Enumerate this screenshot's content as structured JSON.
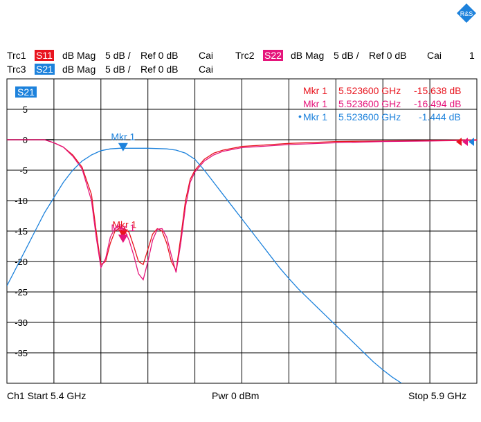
{
  "brand": {
    "logo_text": "R&S"
  },
  "header": {
    "row1": [
      {
        "trace": "Trc1",
        "param": "S11",
        "color": "#e8141e",
        "format": "dB Mag",
        "scale": "5 dB /",
        "ref": "Ref 0 dB",
        "cal": "Cai"
      },
      {
        "trace": "Trc2",
        "param": "S22",
        "color": "#e5157b",
        "format": "dB Mag",
        "scale": "5 dB /",
        "ref": "Ref 0 dB",
        "cal": "Cai",
        "channel": "1"
      }
    ],
    "row2": [
      {
        "trace": "Trc3",
        "param": "S21",
        "color": "#1d82dc",
        "format": "dB Mag",
        "scale": "5 dB /",
        "ref": "Ref 0 dB",
        "cal": "Cai"
      }
    ]
  },
  "diagram": {
    "active_trace_label": "S21"
  },
  "markers": [
    {
      "name": "Mkr 1",
      "freq": "5.523600 GHz",
      "value": "-15.638 dB",
      "color": "#e8141e",
      "active": false
    },
    {
      "name": "Mkr 1",
      "freq": "5.523600 GHz",
      "value": "-16.494 dB",
      "color": "#e5157b",
      "active": false
    },
    {
      "name": "Mkr 1",
      "freq": "5.523600 GHz",
      "value": "-1.444 dB",
      "color": "#1d82dc",
      "active": true
    }
  ],
  "footer": {
    "start": "Ch1  Start  5.4 GHz",
    "power": "Pwr  0 dBm",
    "stop": "Stop  5.9 GHz"
  },
  "chart_data": {
    "type": "line",
    "xlim": [
      5.4,
      5.9
    ],
    "x_unit": "GHz",
    "ylim": [
      -40,
      10
    ],
    "y_unit": "dB",
    "y_ticks": [
      5,
      0,
      -5,
      -10,
      -15,
      -20,
      -25,
      -30,
      -35
    ],
    "grid": true,
    "series": [
      {
        "name": "S11",
        "color": "#e8141e",
        "x": [
          5.4,
          5.42,
          5.44,
          5.45,
          5.46,
          5.47,
          5.48,
          5.49,
          5.495,
          5.5,
          5.505,
          5.51,
          5.515,
          5.52,
          5.525,
          5.53,
          5.535,
          5.54,
          5.545,
          5.55,
          5.555,
          5.56,
          5.565,
          5.57,
          5.575,
          5.58,
          5.585,
          5.59,
          5.595,
          5.6,
          5.61,
          5.62,
          5.63,
          5.65,
          5.7,
          5.75,
          5.8,
          5.85,
          5.9
        ],
        "y": [
          0,
          0,
          0,
          -0.5,
          -1.2,
          -2.5,
          -4.5,
          -9,
          -15,
          -20.5,
          -20,
          -17,
          -15,
          -14.5,
          -14.6,
          -15.2,
          -17.5,
          -20,
          -20.5,
          -18,
          -15.5,
          -14.6,
          -15,
          -17,
          -20,
          -21.5,
          -16,
          -10,
          -6.5,
          -5,
          -3.2,
          -2.2,
          -1.7,
          -1.1,
          -0.6,
          -0.3,
          -0.2,
          -0.1,
          0
        ]
      },
      {
        "name": "S22",
        "color": "#e5157b",
        "x": [
          5.4,
          5.42,
          5.44,
          5.45,
          5.46,
          5.47,
          5.48,
          5.49,
          5.495,
          5.5,
          5.505,
          5.51,
          5.515,
          5.52,
          5.525,
          5.53,
          5.535,
          5.54,
          5.545,
          5.55,
          5.555,
          5.56,
          5.565,
          5.57,
          5.575,
          5.58,
          5.585,
          5.59,
          5.595,
          5.6,
          5.61,
          5.62,
          5.63,
          5.65,
          5.7,
          5.75,
          5.8,
          5.85,
          5.9
        ],
        "y": [
          0,
          0,
          0,
          -0.5,
          -1.2,
          -2.7,
          -4.8,
          -10,
          -16,
          -21,
          -19.5,
          -16,
          -14.5,
          -14.2,
          -14.8,
          -16.5,
          -19,
          -22,
          -23,
          -20,
          -16.5,
          -14.7,
          -14.6,
          -16,
          -19,
          -21.8,
          -17,
          -11,
          -7,
          -5.3,
          -3.5,
          -2.5,
          -1.9,
          -1.3,
          -0.8,
          -0.5,
          -0.3,
          -0.2,
          -0.1
        ]
      },
      {
        "name": "S21",
        "color": "#1d82dc",
        "x": [
          5.4,
          5.41,
          5.42,
          5.43,
          5.44,
          5.45,
          5.46,
          5.47,
          5.48,
          5.49,
          5.5,
          5.51,
          5.52,
          5.53,
          5.55,
          5.57,
          5.58,
          5.59,
          5.6,
          5.61,
          5.62,
          5.63,
          5.64,
          5.65,
          5.66,
          5.67,
          5.68,
          5.69,
          5.7,
          5.71,
          5.72,
          5.73,
          5.74,
          5.75,
          5.76,
          5.77,
          5.78,
          5.79,
          5.8,
          5.81,
          5.82
        ],
        "y": [
          -24,
          -21,
          -18,
          -15,
          -12,
          -9.5,
          -7,
          -5,
          -3.5,
          -2.5,
          -1.8,
          -1.5,
          -1.4,
          -1.4,
          -1.4,
          -1.5,
          -1.7,
          -2.2,
          -3.2,
          -5,
          -7,
          -9,
          -11,
          -13,
          -15,
          -17,
          -19,
          -21,
          -22.8,
          -24.5,
          -26,
          -27.5,
          -29,
          -30.5,
          -32,
          -33.5,
          -35,
          -36.5,
          -37.8,
          -39,
          -40
        ]
      }
    ],
    "markers": [
      {
        "trace": "S21",
        "label": "Mkr 1",
        "x": 5.5236,
        "y": -1.444,
        "color": "#1d82dc"
      },
      {
        "trace": "S11",
        "label": "Mkr 1",
        "x": 5.5236,
        "y": -15.638,
        "color": "#e8141e"
      },
      {
        "trace": "S22",
        "label": "Mkr 1",
        "x": 5.5236,
        "y": -16.494,
        "color": "#e5157b"
      }
    ]
  }
}
